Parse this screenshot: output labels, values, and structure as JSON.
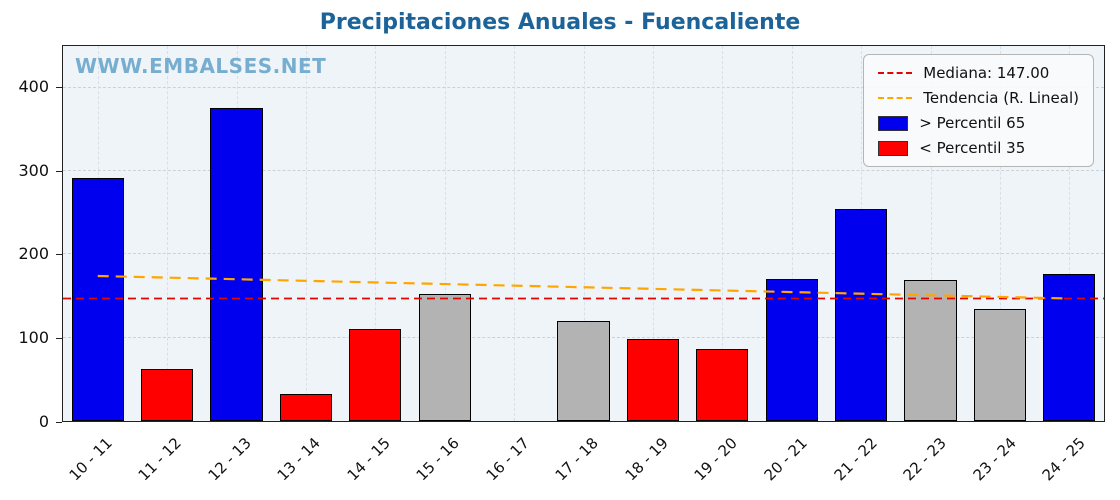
{
  "title": "Precipitaciones Anuales - Fuencaliente",
  "watermark": "WWW.EMBALSES.NET",
  "colors": {
    "title": "#1b6398",
    "watermark": "#77aed0",
    "above": "#0000ee",
    "below": "#ff0000",
    "neutral": "#b3b3b3",
    "median": "#e10600",
    "trend": "#ffa500",
    "plot_bg": "#eff4f8",
    "axis": "#222222"
  },
  "chart_data": {
    "type": "bar",
    "title": "Precipitaciones Anuales - Fuencaliente",
    "categories": [
      "10 - 11",
      "11 - 12",
      "12 - 13",
      "13 - 14",
      "14 - 15",
      "15 - 16",
      "16 - 17",
      "17 - 18",
      "18 - 19",
      "19 - 20",
      "20 - 21",
      "21 - 22",
      "22 - 23",
      "23 - 24",
      "24 - 25"
    ],
    "values": [
      292,
      63,
      376,
      33,
      111,
      152,
      0,
      120,
      99,
      86,
      170,
      254,
      169,
      135,
      177
    ],
    "bar_classes": [
      "above",
      "below",
      "above",
      "below",
      "below",
      "neutral",
      "neutral",
      "neutral",
      "below",
      "below",
      "above",
      "above",
      "neutral",
      "neutral",
      "above"
    ],
    "xlabel": "",
    "ylabel": "",
    "ylim": [
      0,
      450
    ],
    "yticks": [
      0,
      100,
      200,
      300,
      400
    ],
    "grid": true,
    "median": 147.0,
    "trend": {
      "start": 174,
      "end": 147
    },
    "legend_position": "top-right",
    "legend": [
      {
        "type": "dash",
        "color_key": "median",
        "label": "Mediana: 147.00"
      },
      {
        "type": "dash",
        "color_key": "trend",
        "label": "Tendencia (R. Lineal)"
      },
      {
        "type": "box",
        "color_key": "above",
        "label": "> Percentil 65"
      },
      {
        "type": "box",
        "color_key": "below",
        "label": "< Percentil 35"
      }
    ]
  }
}
